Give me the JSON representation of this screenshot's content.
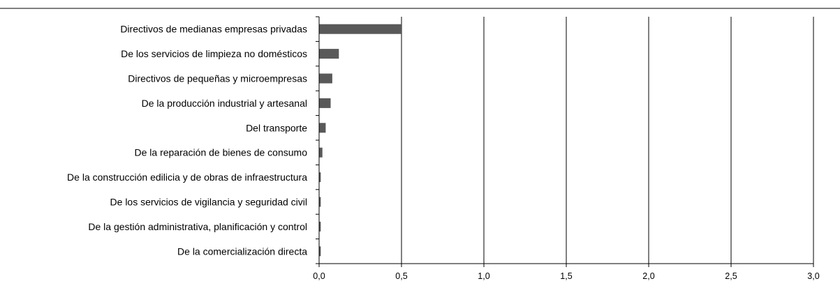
{
  "chart_data": {
    "type": "bar",
    "orientation": "horizontal",
    "title": "",
    "xlabel": "",
    "ylabel": "",
    "categories": [
      "Directivos de medianas empresas privadas",
      "De los servicios de limpieza no domésticos",
      "Directivos de pequeñas y microempresas ",
      "De la producción industrial y artesanal",
      "Del transporte",
      "De la reparación de bienes de consumo",
      "De la construcción edilicia y de obras de infraestructura",
      "De los servicios de vigilancia y seguridad civil",
      "De la gestión administrativa, planificación y control",
      "De la comercialización directa "
    ],
    "values": [
      0.5,
      0.12,
      0.08,
      0.07,
      0.04,
      0.02,
      0.01,
      0.01,
      0.01,
      0.01
    ],
    "xlim": [
      0,
      3.0
    ],
    "ticks": [
      "0,0",
      "0,5",
      "1,0",
      "1,5",
      "2,0",
      "2,5",
      "3,0"
    ],
    "vertical_gridlines": true,
    "bar_color": "#595959",
    "axis_color": "#000000"
  }
}
